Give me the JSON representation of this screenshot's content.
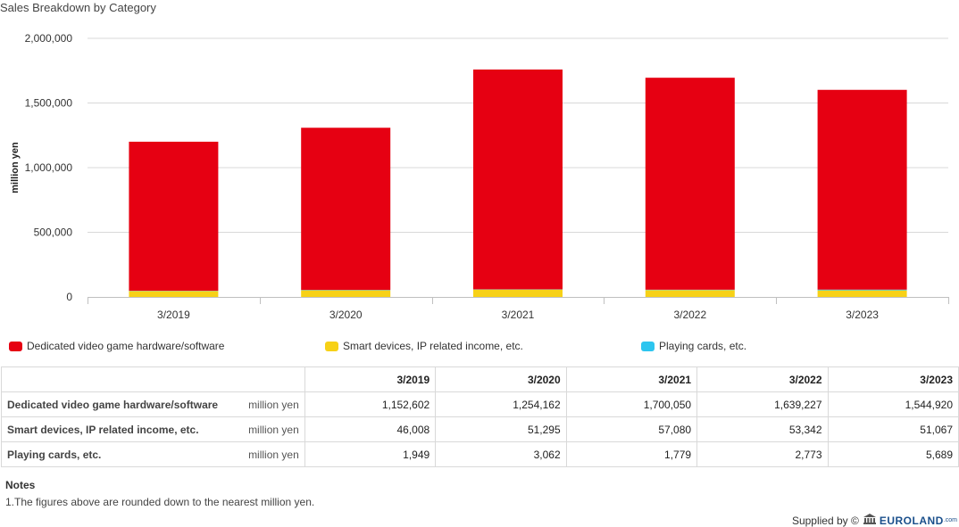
{
  "page": {
    "notes_title": "Notes",
    "notes_text": "1.The figures above are rounded down to the nearest million yen.",
    "supplied_by": "Supplied by ©",
    "brand": "EUROLAND",
    "brand_suffix": ".com",
    "brand_icon": "building-icon"
  },
  "chart_data": {
    "type": "bar",
    "stacked": true,
    "title": "Sales Breakdown by Category",
    "ylabel": "million yen",
    "xlabel": "",
    "ylim": [
      0,
      2000000
    ],
    "y_ticks": [
      0,
      500000,
      1000000,
      1500000,
      2000000
    ],
    "y_tick_labels": [
      "0",
      "500,000",
      "1,000,000",
      "1,500,000",
      "2,000,000"
    ],
    "grid": true,
    "legend_position": "bottom",
    "categories": [
      "3/2019",
      "3/2020",
      "3/2021",
      "3/2022",
      "3/2023"
    ],
    "series": [
      {
        "name": "Dedicated video game hardware/software",
        "color": "#e60012",
        "values": [
          1152602,
          1254162,
          1700050,
          1639227,
          1544920
        ]
      },
      {
        "name": "Smart devices, IP related income, etc.",
        "color": "#f7d117",
        "values": [
          46008,
          51295,
          57080,
          53342,
          51067
        ]
      },
      {
        "name": "Playing cards, etc.",
        "color": "#2dc5ef",
        "values": [
          1949,
          3062,
          1779,
          2773,
          5689
        ]
      }
    ]
  },
  "table": {
    "headers": [
      "3/2019",
      "3/2020",
      "3/2021",
      "3/2022",
      "3/2023"
    ],
    "rows": [
      {
        "label": "Dedicated video game hardware/software",
        "unit": "million yen",
        "values": [
          "1,152,602",
          "1,254,162",
          "1,700,050",
          "1,639,227",
          "1,544,920"
        ]
      },
      {
        "label": "Smart devices, IP related income, etc.",
        "unit": "million yen",
        "values": [
          "46,008",
          "51,295",
          "57,080",
          "53,342",
          "51,067"
        ]
      },
      {
        "label": "Playing cards, etc.",
        "unit": "million yen",
        "values": [
          "1,949",
          "3,062",
          "1,779",
          "2,773",
          "5,689"
        ]
      }
    ]
  }
}
